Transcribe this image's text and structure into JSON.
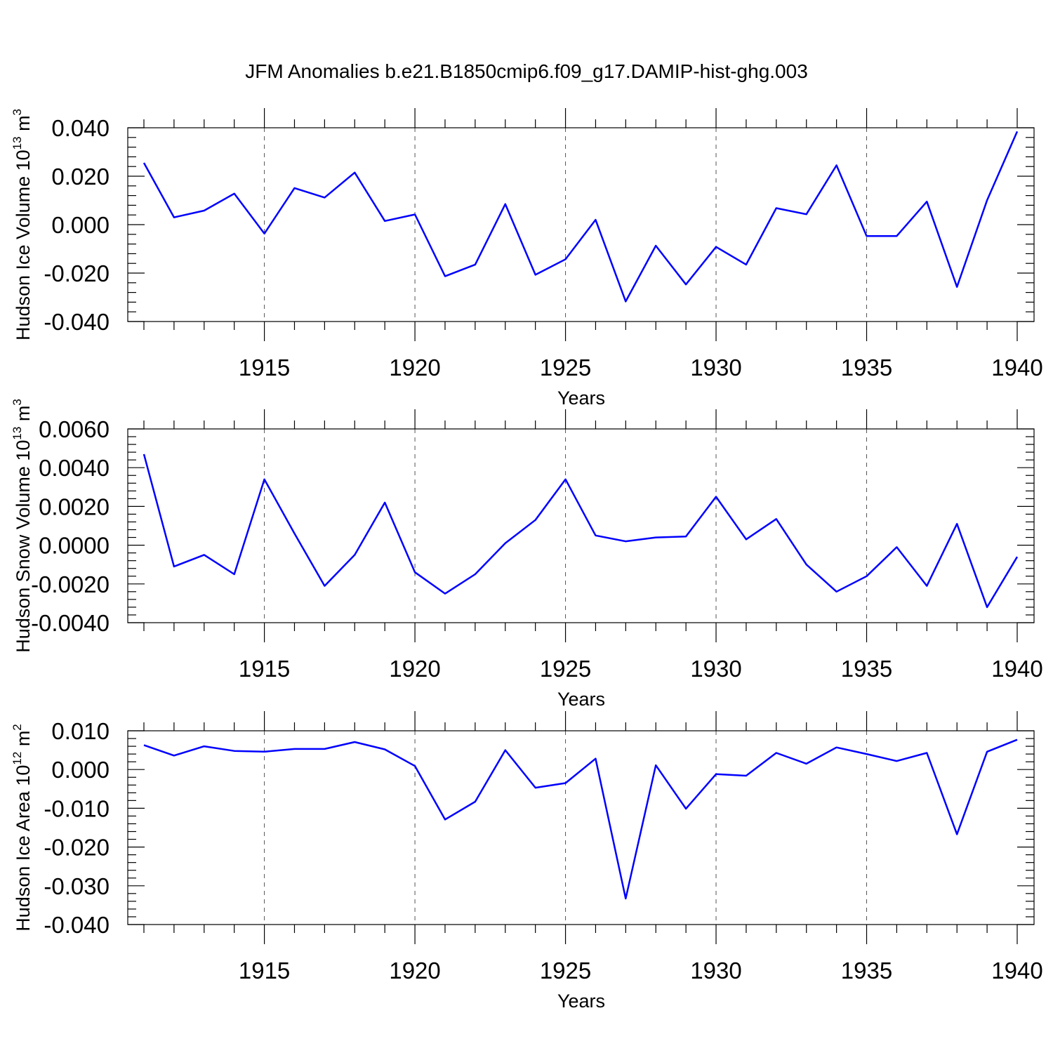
{
  "title": "JFM Anomalies b.e21.B1850cmip6.f09_g17.DAMIP-hist-ghg.003",
  "colors": {
    "line": "#0000ff",
    "grid": "#555555",
    "axis": "#000000"
  },
  "chart_data": [
    {
      "type": "line",
      "ylabel_main": "Hudson Ice Volume 10",
      "ylabel_exp": "13",
      "ylabel_unit": " m",
      "ylabel_unit_exp": "3",
      "xlabel": "Years",
      "xlim": [
        1911,
        1940
      ],
      "ylim": [
        -0.04,
        0.04
      ],
      "yticks": [
        -0.04,
        -0.02,
        0.0,
        0.02,
        0.04
      ],
      "ytick_labels": [
        "-0.040",
        "-0.020",
        "0.000",
        "0.020",
        "0.040"
      ],
      "xticks": [
        1915,
        1920,
        1925,
        1930,
        1935,
        1940
      ],
      "xtick_labels": [
        "1915",
        "1920",
        "1925",
        "1930",
        "1935",
        "1940"
      ],
      "grid": "vertical dashed at major x ticks",
      "x": [
        1911,
        1912,
        1913,
        1914,
        1915,
        1916,
        1917,
        1918,
        1919,
        1920,
        1921,
        1922,
        1923,
        1924,
        1925,
        1926,
        1927,
        1928,
        1929,
        1930,
        1931,
        1932,
        1933,
        1934,
        1935,
        1936,
        1937,
        1938,
        1939,
        1940
      ],
      "values": [
        0.0255,
        0.003,
        0.0058,
        0.0128,
        -0.0037,
        0.0151,
        0.0112,
        0.0215,
        0.0015,
        0.0042,
        -0.0213,
        -0.0165,
        0.0085,
        -0.0207,
        -0.0143,
        0.002,
        -0.0317,
        -0.0087,
        -0.0247,
        -0.0092,
        -0.0165,
        0.0068,
        0.0043,
        0.0245,
        -0.0047,
        -0.0047,
        0.0095,
        -0.0257,
        0.0101,
        0.0385
      ]
    },
    {
      "type": "line",
      "ylabel_main": "Hudson Snow Volume 10",
      "ylabel_exp": "13",
      "ylabel_unit": " m",
      "ylabel_unit_exp": "3",
      "xlabel": "Years",
      "xlim": [
        1911,
        1940
      ],
      "ylim": [
        -0.004,
        0.006
      ],
      "yticks": [
        -0.004,
        -0.002,
        0.0,
        0.002,
        0.004,
        0.006
      ],
      "ytick_labels": [
        "-0.0040",
        "-0.0020",
        "0.0000",
        "0.0020",
        "0.0040",
        "0.0060"
      ],
      "xticks": [
        1915,
        1920,
        1925,
        1930,
        1935,
        1940
      ],
      "xtick_labels": [
        "1915",
        "1920",
        "1925",
        "1930",
        "1935",
        "1940"
      ],
      "grid": "vertical dashed at major x ticks",
      "x": [
        1911,
        1912,
        1913,
        1914,
        1915,
        1916,
        1917,
        1918,
        1919,
        1920,
        1921,
        1922,
        1923,
        1924,
        1925,
        1926,
        1927,
        1928,
        1929,
        1930,
        1931,
        1932,
        1933,
        1934,
        1935,
        1936,
        1937,
        1938,
        1939,
        1940
      ],
      "values": [
        0.0047,
        -0.0011,
        -0.0005,
        -0.0015,
        0.0034,
        0.0006,
        -0.0021,
        -0.0005,
        0.0022,
        -0.0014,
        -0.0025,
        -0.0015,
        0.0001,
        0.0013,
        0.0034,
        0.0005,
        0.0002,
        0.0004,
        0.00045,
        0.0025,
        0.0003,
        0.00135,
        -0.001,
        -0.0024,
        -0.0016,
        -0.0001,
        -0.0021,
        0.0011,
        -0.0032,
        -0.0006
      ]
    },
    {
      "type": "line",
      "ylabel_main": "Hudson Ice Area 10",
      "ylabel_exp": "12",
      "ylabel_unit": " m",
      "ylabel_unit_exp": "2",
      "xlabel": "Years",
      "xlim": [
        1911,
        1940
      ],
      "ylim": [
        -0.04,
        0.01
      ],
      "yticks": [
        -0.04,
        -0.03,
        -0.02,
        -0.01,
        0.0,
        0.01
      ],
      "ytick_labels": [
        "-0.040",
        "-0.030",
        "-0.020",
        "-0.010",
        "0.000",
        "0.010"
      ],
      "xticks": [
        1915,
        1920,
        1925,
        1930,
        1935,
        1940
      ],
      "xtick_labels": [
        "1915",
        "1920",
        "1925",
        "1930",
        "1935",
        "1940"
      ],
      "grid": "vertical dashed at major x ticks",
      "x": [
        1911,
        1912,
        1913,
        1914,
        1915,
        1916,
        1917,
        1918,
        1919,
        1920,
        1921,
        1922,
        1923,
        1924,
        1925,
        1926,
        1927,
        1928,
        1929,
        1930,
        1931,
        1932,
        1933,
        1934,
        1935,
        1936,
        1937,
        1938,
        1939,
        1940
      ],
      "values": [
        0.0063,
        0.0036,
        0.006,
        0.0048,
        0.0046,
        0.0053,
        0.0053,
        0.0071,
        0.0052,
        0.0009,
        -0.0129,
        -0.0083,
        0.005,
        -0.0047,
        -0.0035,
        0.0028,
        -0.0333,
        0.0011,
        -0.0101,
        -0.0012,
        -0.0016,
        0.0043,
        0.0015,
        0.0057,
        0.004,
        0.0022,
        0.0043,
        -0.0167,
        0.0046,
        0.0077
      ]
    }
  ]
}
